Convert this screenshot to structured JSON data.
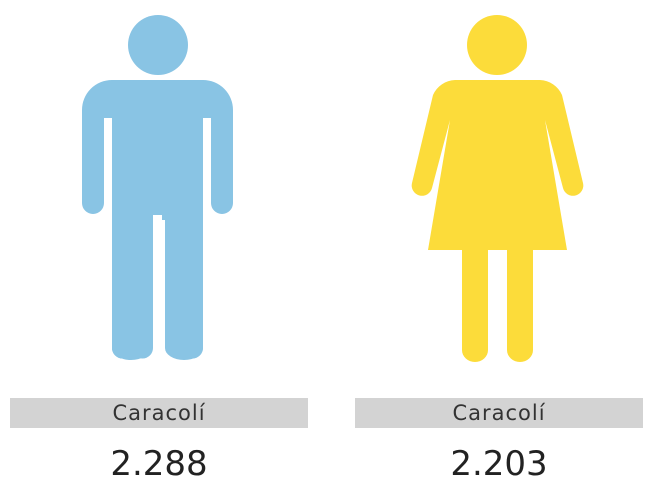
{
  "items": [
    {
      "label": "Caracolí",
      "value": "2.288"
    },
    {
      "label": "Caracolí",
      "value": "2.203"
    }
  ]
}
